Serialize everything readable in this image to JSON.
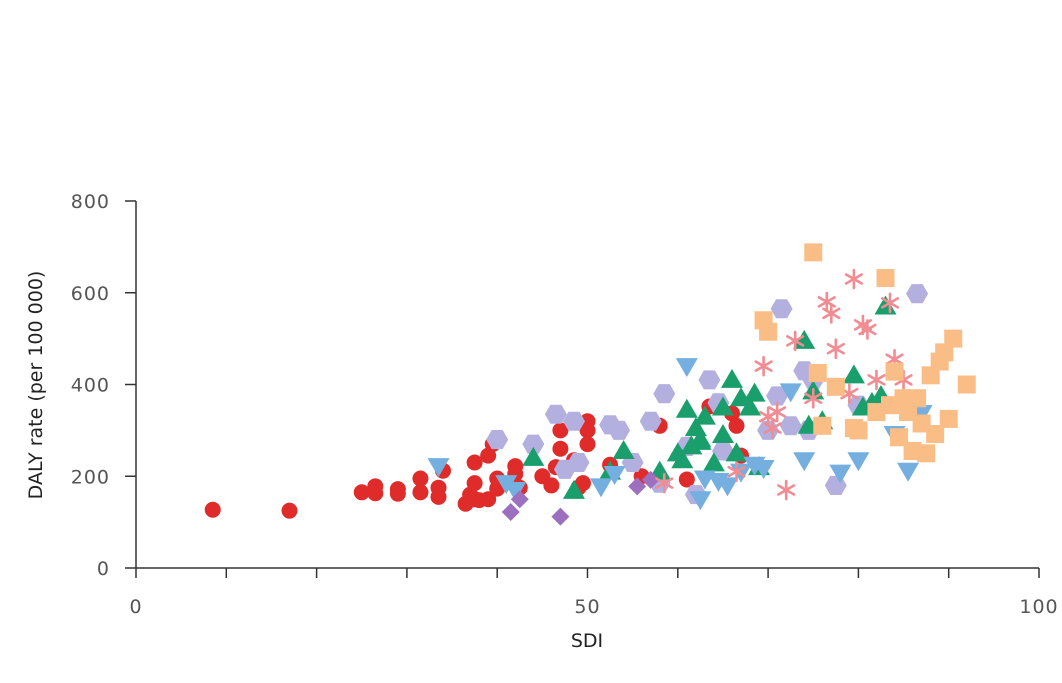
{
  "chart_data": {
    "type": "scatter",
    "title": "",
    "xlabel": "SDI",
    "ylabel": "DALY rate (per 100 000)",
    "xlim": [
      0,
      100
    ],
    "ylim": [
      0,
      800
    ],
    "xticks": [
      0,
      50,
      100
    ],
    "xtick_labels": [
      "0",
      "50",
      "100"
    ],
    "x_minor_ticks": [
      10,
      20,
      30,
      40,
      60,
      70,
      80,
      90
    ],
    "yticks": [
      0,
      200,
      400,
      600,
      800
    ],
    "ytick_labels": [
      "0",
      "200",
      "400",
      "600",
      "800"
    ],
    "grid": false,
    "legend": "none",
    "series": [
      {
        "marker": "circle",
        "color": "#e02b2b",
        "x": [
          8.5,
          17,
          25,
          26.5,
          26.5,
          29,
          29,
          31.5,
          31.5,
          33.5,
          33.5,
          34,
          36.5,
          37,
          37.5,
          37.5,
          37.5,
          38,
          39,
          39,
          39.5,
          40,
          40,
          42,
          42,
          42.5,
          45,
          46,
          46.5,
          47,
          47,
          48.5,
          49,
          49.5,
          50,
          50,
          50,
          52.5,
          56,
          58,
          61,
          63.5,
          66,
          66.5,
          67
        ],
        "y": [
          127,
          125,
          165,
          178,
          163,
          172,
          162,
          195,
          165,
          175,
          155,
          212,
          140,
          160,
          150,
          230,
          185,
          148,
          150,
          245,
          270,
          173,
          195,
          222,
          205,
          175,
          200,
          180,
          220,
          260,
          300,
          235,
          175,
          185,
          320,
          300,
          270,
          225,
          200,
          310,
          193,
          352,
          337,
          310,
          245
        ]
      },
      {
        "marker": "hexagon",
        "color": "#b3b0e0",
        "x": [
          40,
          44,
          46.5,
          47.5,
          48.5,
          52.5,
          53.5,
          57,
          58,
          58.5,
          61,
          62,
          63.5,
          64.5,
          65,
          70,
          71,
          71.5,
          72.5,
          74,
          74.5,
          75,
          77.5,
          80,
          86.5,
          49,
          55
        ],
        "y": [
          280,
          270,
          335,
          215,
          320,
          312,
          300,
          320,
          185,
          380,
          265,
          160,
          410,
          360,
          255,
          300,
          375,
          565,
          310,
          430,
          300,
          410,
          180,
          355,
          598,
          230,
          230
        ]
      },
      {
        "marker": "triangle-up",
        "color": "#1a9e6b",
        "x": [
          44,
          48.5,
          52.5,
          54,
          58,
          60,
          60.5,
          61,
          61.5,
          62,
          62.5,
          63,
          64,
          65,
          65,
          66,
          66.5,
          67,
          68,
          68.5,
          69,
          74,
          74.5,
          75,
          76,
          79.5,
          80.5,
          81.5,
          82.5,
          83,
          62.5
        ],
        "y": [
          240,
          168,
          210,
          255,
          210,
          250,
          235,
          345,
          265,
          305,
          275,
          330,
          228,
          350,
          290,
          410,
          250,
          370,
          350,
          380,
          220,
          495,
          310,
          385,
          320,
          420,
          350,
          360,
          375,
          570,
          280
        ]
      },
      {
        "marker": "triangle-down",
        "color": "#74afe0",
        "x": [
          33.5,
          41,
          42,
          51.5,
          53,
          61,
          62.5,
          63,
          64.5,
          65.5,
          67,
          68.5,
          69.5,
          72.5,
          74,
          78,
          80,
          84,
          85.5,
          87
        ],
        "y": [
          222,
          185,
          170,
          178,
          205,
          440,
          150,
          195,
          190,
          180,
          210,
          225,
          218,
          385,
          235,
          208,
          235,
          292,
          212,
          338
        ]
      },
      {
        "marker": "diamond",
        "color": "#9d70bf",
        "x": [
          41.5,
          42.5,
          47,
          55.5,
          57
        ],
        "y": [
          122,
          150,
          112,
          178,
          192
        ]
      },
      {
        "marker": "asterisk",
        "color": "#f08c92",
        "x": [
          58.5,
          66.5,
          69.5,
          70,
          70.5,
          71,
          72,
          73,
          75,
          76.5,
          77,
          77.5,
          79,
          79.5,
          80.5,
          81,
          82,
          83.5,
          84,
          85
        ],
        "y": [
          185,
          210,
          440,
          330,
          305,
          340,
          170,
          495,
          370,
          580,
          555,
          478,
          380,
          630,
          530,
          520,
          410,
          578,
          455,
          410
        ]
      },
      {
        "marker": "square",
        "color": "#fbbd86",
        "x": [
          69.5,
          70,
          75,
          75.5,
          76,
          77.5,
          79.5,
          80,
          82,
          83,
          83.5,
          84,
          84.5,
          85,
          85.5,
          86,
          86.5,
          87,
          87.5,
          88,
          88.5,
          89,
          89.5,
          90,
          90.5,
          92
        ],
        "y": [
          540,
          515,
          688,
          425,
          310,
          395,
          305,
          300,
          340,
          632,
          355,
          428,
          285,
          370,
          340,
          255,
          370,
          315,
          250,
          420,
          292,
          450,
          470,
          325,
          500,
          400
        ]
      }
    ]
  }
}
